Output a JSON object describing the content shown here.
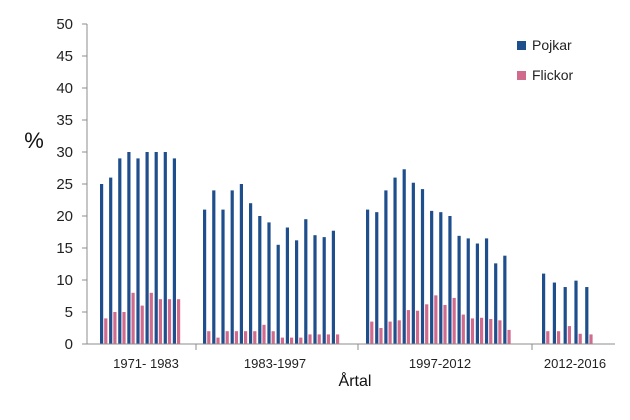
{
  "chart_data": {
    "type": "bar",
    "title": "",
    "xlabel": "Årtal",
    "ylabel": "%",
    "ylim": [
      0,
      50
    ],
    "yticks": [
      0,
      5,
      10,
      15,
      20,
      25,
      30,
      35,
      40,
      45,
      50
    ],
    "grid": false,
    "legend_position": "top-right",
    "groups": [
      {
        "label": "1971- 1983",
        "series": [
          {
            "name": "Pojkar",
            "values": [
              25,
              26,
              29,
              30,
              29,
              30,
              30,
              30,
              29
            ]
          },
          {
            "name": "Flickor",
            "values": [
              4,
              5,
              5,
              8,
              6,
              8,
              7,
              7,
              7
            ]
          }
        ]
      },
      {
        "label": "1983-1997",
        "series": [
          {
            "name": "Pojkar",
            "values": [
              21,
              24,
              21,
              24,
              25,
              22,
              20,
              19,
              15.5,
              18.2,
              16.2,
              19.5,
              17,
              16.7,
              17.7
            ]
          },
          {
            "name": "Flickor",
            "values": [
              2,
              1,
              2,
              2,
              2,
              2,
              3,
              2,
              1,
              1,
              1,
              1.5,
              1.5,
              1.5,
              1.5
            ]
          }
        ]
      },
      {
        "label": "1997-2012",
        "series": [
          {
            "name": "Pojkar",
            "values": [
              21,
              20.6,
              24,
              26,
              27.3,
              25.2,
              24.2,
              20.8,
              20.6,
              20,
              16.9,
              16.5,
              15.7,
              16.5,
              12.6,
              13.8
            ]
          },
          {
            "name": "Flickor",
            "values": [
              3.5,
              2.5,
              3.5,
              3.7,
              5.3,
              5.2,
              6.2,
              7.6,
              6.1,
              7.2,
              4.6,
              4,
              4.1,
              3.9,
              3.7,
              2.2
            ]
          }
        ]
      },
      {
        "label": "2012-2016",
        "series": [
          {
            "name": "Pojkar",
            "values": [
              11,
              9.6,
              8.9,
              9.9,
              8.9
            ]
          },
          {
            "name": "Flickor",
            "values": [
              2,
              2,
              2.8,
              1.6,
              1.5
            ]
          }
        ]
      }
    ],
    "legend": [
      {
        "name": "Pojkar",
        "color": "#1f4e8c"
      },
      {
        "name": "Flickor",
        "color": "#d06b8e"
      }
    ],
    "colors": {
      "Pojkar": "#1f4e8c",
      "Flickor": "#d06b8e",
      "axis": "#8c8c8c"
    }
  }
}
